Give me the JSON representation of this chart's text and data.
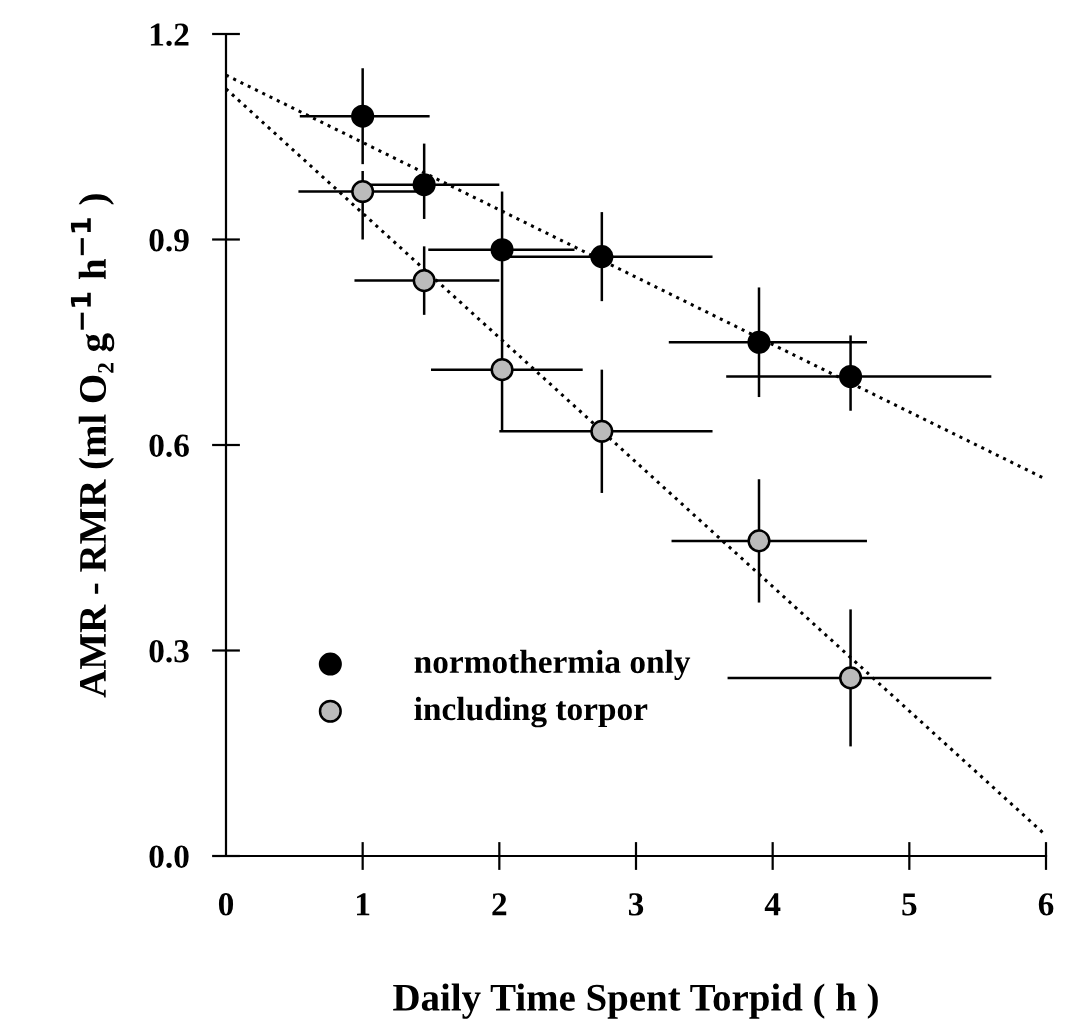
{
  "chart_data": {
    "type": "scatter",
    "xlabel": "Daily Time Spent Torpid ( h )",
    "ylabel": "AMR - RMR (ml O₂ g$^{−1}$ h$^{−1}$ )",
    "xlim": [
      0,
      6
    ],
    "ylim": [
      0,
      1.2
    ],
    "xticks": [
      0,
      1,
      2,
      3,
      4,
      5,
      6
    ],
    "yticks": [
      {
        "value": 0,
        "label": "0.0"
      },
      {
        "value": 0.3,
        "label": "0.3"
      },
      {
        "value": 0.6,
        "label": "0.6"
      },
      {
        "value": 0.9,
        "label": "0.9"
      },
      {
        "value": 1.2,
        "label": "1.2"
      }
    ],
    "grid": false,
    "legend": "bottom left",
    "marker": "circle",
    "series": [
      {
        "name": "normothermia only",
        "color": "#000000",
        "x": [
          1.0,
          1.45,
          2.02,
          2.75,
          3.9,
          4.57
        ],
        "values": [
          1.08,
          0.98,
          0.885,
          0.875,
          0.75,
          0.7
        ],
        "errors": [
          [
            1.01,
            1.15
          ],
          [
            0.93,
            1.04
          ],
          [
            0.8,
            0.97
          ],
          [
            0.81,
            0.94
          ],
          [
            0.67,
            0.83
          ],
          [
            0.65,
            0.76
          ]
        ],
        "xerrors": [
          [
            0.54,
            1.49
          ],
          [
            1.04,
            2.0
          ],
          [
            1.48,
            2.55
          ],
          [
            2.0,
            3.56
          ],
          [
            3.24,
            4.69
          ],
          [
            3.66,
            5.6
          ]
        ]
      },
      {
        "name": "including torpor",
        "color": "#bbbbbb",
        "x": [
          1.0,
          1.45,
          2.02,
          2.75,
          3.9,
          4.57
        ],
        "values": [
          0.97,
          0.84,
          0.71,
          0.62,
          0.46,
          0.26
        ],
        "errors": [
          [
            0.9,
            1.0
          ],
          [
            0.79,
            0.89
          ],
          [
            0.62,
            0.8
          ],
          [
            0.53,
            0.71
          ],
          [
            0.37,
            0.55
          ],
          [
            0.16,
            0.36
          ]
        ],
        "xerrors": [
          [
            0.53,
            1.46
          ],
          [
            0.94,
            2.0
          ],
          [
            1.5,
            2.61
          ],
          [
            2.0,
            3.56
          ],
          [
            3.26,
            4.69
          ],
          [
            3.67,
            5.6
          ]
        ]
      },
      {
        "type": "line",
        "color": "#000000",
        "line_style": "dotted",
        "marker": "none",
        "x": [
          0,
          6
        ],
        "values": [
          1.14,
          0.55
        ]
      },
      {
        "type": "line",
        "color": "#000000",
        "line_style": "dotted",
        "marker": "none",
        "x": [
          0,
          6
        ],
        "values": [
          1.12,
          0.03
        ]
      }
    ]
  }
}
